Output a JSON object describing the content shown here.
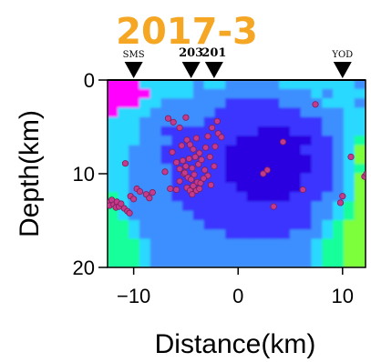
{
  "chart_data": {
    "type": "heatmap",
    "title": "2017-3",
    "title_color": "#f5a623",
    "xlabel": "Distance(km)",
    "ylabel": "Depth(km)",
    "xlim": [
      -12.5,
      12.2
    ],
    "ylim": [
      0,
      20
    ],
    "x_ticks": [
      -10,
      0,
      10
    ],
    "x_tick_labels": [
      "−10",
      "0",
      "10"
    ],
    "y_ticks": [
      0,
      10,
      20
    ],
    "y_tick_labels": [
      "0",
      "10",
      "20"
    ],
    "colormap": [
      "#ff00ff",
      "#2ad9ff",
      "#3e8fff",
      "#3a34ff",
      "#2c00e0",
      "#19ff9a",
      "#7dff3a"
    ],
    "stations": [
      {
        "label": "SMS",
        "x": -10.0,
        "bold": false
      },
      {
        "label": "203",
        "x": -4.5,
        "bold": true
      },
      {
        "label": "201",
        "x": -2.3,
        "bold": true
      },
      {
        "label": "YOD",
        "x": 10.0,
        "bold": false
      }
    ],
    "events": [
      {
        "x": -12.5,
        "y": 13.1
      },
      {
        "x": -12.3,
        "y": 13.4
      },
      {
        "x": -12.1,
        "y": 12.8
      },
      {
        "x": -11.9,
        "y": 13.3
      },
      {
        "x": -11.7,
        "y": 13.6
      },
      {
        "x": -11.6,
        "y": 13.0
      },
      {
        "x": -11.4,
        "y": 13.5
      },
      {
        "x": -11.2,
        "y": 13.2
      },
      {
        "x": -10.9,
        "y": 13.7
      },
      {
        "x": -10.6,
        "y": 14.0
      },
      {
        "x": -10.3,
        "y": 12.4
      },
      {
        "x": -10.0,
        "y": 12.7
      },
      {
        "x": -9.7,
        "y": 11.6
      },
      {
        "x": -9.4,
        "y": 11.9
      },
      {
        "x": -10.4,
        "y": 14.2
      },
      {
        "x": -10.8,
        "y": 8.9
      },
      {
        "x": -8.8,
        "y": 12.2
      },
      {
        "x": -8.5,
        "y": 12.6
      },
      {
        "x": -8.2,
        "y": 12.0
      },
      {
        "x": -6.7,
        "y": 4.1
      },
      {
        "x": -6.2,
        "y": 4.5
      },
      {
        "x": -6.3,
        "y": 7.7
      },
      {
        "x": -5.6,
        "y": 5.1
      },
      {
        "x": -5.0,
        "y": 4.0
      },
      {
        "x": -5.4,
        "y": 7.0
      },
      {
        "x": -4.9,
        "y": 6.4
      },
      {
        "x": -4.6,
        "y": 6.9
      },
      {
        "x": -4.3,
        "y": 7.4
      },
      {
        "x": -4.0,
        "y": 6.2
      },
      {
        "x": -3.7,
        "y": 7.8
      },
      {
        "x": -3.1,
        "y": 7.2
      },
      {
        "x": -2.9,
        "y": 6.0
      },
      {
        "x": -2.2,
        "y": 7.1
      },
      {
        "x": -2.7,
        "y": 8.2
      },
      {
        "x": -2.5,
        "y": 5.1
      },
      {
        "x": -2.0,
        "y": 4.4
      },
      {
        "x": -1.9,
        "y": 5.7
      },
      {
        "x": -1.6,
        "y": 6.1
      },
      {
        "x": -2.3,
        "y": 9.2
      },
      {
        "x": -5.9,
        "y": 8.8
      },
      {
        "x": -5.6,
        "y": 9.5
      },
      {
        "x": -5.3,
        "y": 8.6
      },
      {
        "x": -5.0,
        "y": 9.2
      },
      {
        "x": -4.7,
        "y": 8.4
      },
      {
        "x": -4.4,
        "y": 9.4
      },
      {
        "x": -4.1,
        "y": 8.2
      },
      {
        "x": -3.8,
        "y": 9.0
      },
      {
        "x": -3.5,
        "y": 8.5
      },
      {
        "x": -3.2,
        "y": 9.6
      },
      {
        "x": -2.9,
        "y": 10.2
      },
      {
        "x": -5.2,
        "y": 10.0
      },
      {
        "x": -4.8,
        "y": 10.4
      },
      {
        "x": -4.5,
        "y": 10.6
      },
      {
        "x": -4.2,
        "y": 10.1
      },
      {
        "x": -3.9,
        "y": 10.9
      },
      {
        "x": -3.6,
        "y": 11.0
      },
      {
        "x": -3.3,
        "y": 10.5
      },
      {
        "x": -4.9,
        "y": 11.5
      },
      {
        "x": -4.6,
        "y": 11.8
      },
      {
        "x": -4.3,
        "y": 11.3
      },
      {
        "x": -4.0,
        "y": 11.8
      },
      {
        "x": -3.7,
        "y": 11.6
      },
      {
        "x": -6.5,
        "y": 11.6
      },
      {
        "x": -5.9,
        "y": 11.7
      },
      {
        "x": -5.6,
        "y": 10.8
      },
      {
        "x": -2.6,
        "y": 11.2
      },
      {
        "x": -4.4,
        "y": 12.2
      },
      {
        "x": -7.0,
        "y": 9.8
      },
      {
        "x": -5.1,
        "y": 9.9
      },
      {
        "x": 2.4,
        "y": 10.0
      },
      {
        "x": 2.8,
        "y": 9.6
      },
      {
        "x": 3.4,
        "y": 13.5
      },
      {
        "x": 4.3,
        "y": 6.6
      },
      {
        "x": 6.2,
        "y": 11.7
      },
      {
        "x": 7.4,
        "y": 2.6
      },
      {
        "x": 10.0,
        "y": 12.4
      },
      {
        "x": 9.8,
        "y": 13.1
      },
      {
        "x": 10.8,
        "y": 8.2
      },
      {
        "x": 12.1,
        "y": 10.3
      },
      {
        "x": 12.3,
        "y": 10.0
      }
    ]
  }
}
